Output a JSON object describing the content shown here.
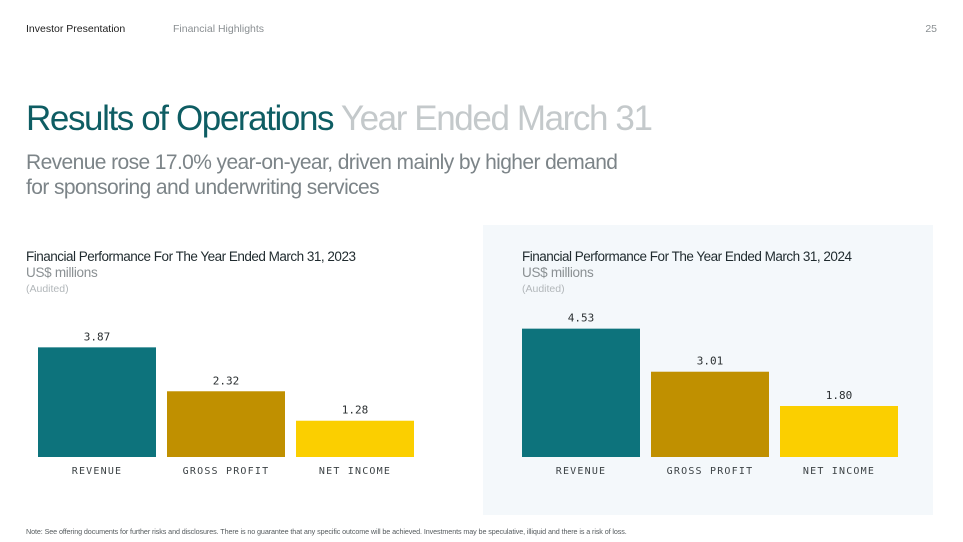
{
  "header": {
    "doc_title": "Investor Presentation",
    "section": "Financial Highlights",
    "page_number": "25"
  },
  "title": {
    "main": "Results of Operations",
    "sub": "Year Ended March 31"
  },
  "subtitle": "Revenue rose 17.0% year-on-year, driven mainly by higher demand for sponsoring and underwriting services",
  "colors": {
    "revenue": "#0d737c",
    "gross_profit": "#c09000",
    "net_income": "#fbcf00"
  },
  "chart_data": [
    {
      "type": "bar",
      "title": "Financial Performance For The Year Ended March 31, 2023",
      "unit": "US$ millions",
      "note": "(Audited)",
      "categories": [
        "REVENUE",
        "GROSS PROFIT",
        "NET INCOME"
      ],
      "values": [
        3.87,
        2.32,
        1.28
      ],
      "labels": [
        "3.87",
        "2.32",
        "1.28"
      ],
      "ylim": [
        0,
        4.8
      ]
    },
    {
      "type": "bar",
      "title": "Financial Performance For The Year Ended March 31, 2024",
      "unit": "US$ millions",
      "note": "(Audited)",
      "categories": [
        "REVENUE",
        "GROSS PROFIT",
        "NET INCOME"
      ],
      "values": [
        4.53,
        3.01,
        1.8
      ],
      "labels": [
        "4.53",
        "3.01",
        "1.80"
      ],
      "ylim": [
        0,
        4.8
      ]
    }
  ],
  "disclaimer": "Note: See offering documents for further risks and disclosures. There is no guarantee that any specific outcome will be achieved. Investments may be speculative, illiquid and there is a risk of loss."
}
